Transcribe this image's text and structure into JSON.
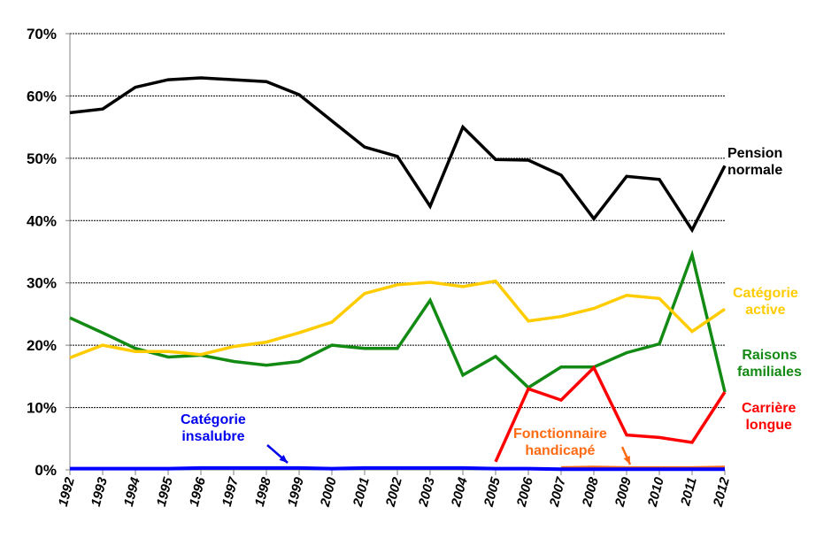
{
  "chart_data": {
    "type": "line",
    "title": "",
    "xlabel": "",
    "ylabel": "",
    "ylim": [
      0,
      70
    ],
    "yticks": [
      "0%",
      "10%",
      "20%",
      "30%",
      "40%",
      "50%",
      "60%",
      "70%"
    ],
    "grid": "horizontal dashed",
    "x": [
      "1992",
      "1993",
      "1994",
      "1995",
      "1996",
      "1997",
      "1998",
      "1999",
      "2000",
      "2001",
      "2002",
      "2003",
      "2004",
      "2005",
      "2006",
      "2007",
      "2008",
      "2009",
      "2010",
      "2011",
      "2012"
    ],
    "series": [
      {
        "name": "Pension normale",
        "color": "#000000",
        "values": [
          57.3,
          57.9,
          61.4,
          62.6,
          62.9,
          62.6,
          62.3,
          60.2,
          56.0,
          51.8,
          50.3,
          42.3,
          55.0,
          49.8,
          49.7,
          47.3,
          40.3,
          47.1,
          46.6,
          38.5,
          48.8
        ]
      },
      {
        "name": "Catégorie active",
        "color": "#FFCC00",
        "values": [
          18.0,
          20.0,
          19.0,
          19.0,
          18.5,
          19.8,
          20.5,
          22.0,
          23.7,
          28.3,
          29.7,
          30.1,
          29.4,
          30.3,
          23.9,
          24.6,
          25.9,
          28.0,
          27.5,
          22.2,
          25.8
        ]
      },
      {
        "name": "Raisons familiales",
        "color": "#138A13",
        "values": [
          24.4,
          22.0,
          19.5,
          18.1,
          18.4,
          17.4,
          16.8,
          17.4,
          20.0,
          19.5,
          19.5,
          27.2,
          15.2,
          18.2,
          13.2,
          16.5,
          16.5,
          18.8,
          20.2,
          34.5,
          12.5
        ]
      },
      {
        "name": "Carrière longue",
        "color": "#FF0000",
        "values": [
          null,
          null,
          null,
          null,
          null,
          null,
          null,
          null,
          null,
          null,
          null,
          null,
          null,
          1.3,
          13.0,
          11.2,
          16.4,
          5.6,
          5.2,
          4.4,
          12.5
        ]
      },
      {
        "name": "Catégorie insalubre",
        "color": "#0000FF",
        "values": [
          0.2,
          0.2,
          0.2,
          0.2,
          0.3,
          0.3,
          0.3,
          0.3,
          0.2,
          0.3,
          0.3,
          0.3,
          0.3,
          0.2,
          0.2,
          0.1,
          0.1,
          0.1,
          0.1,
          0.1,
          0.1
        ]
      },
      {
        "name": "Fonctionnaire handicapé",
        "color": "#FF6A13",
        "values": [
          null,
          null,
          null,
          null,
          null,
          null,
          null,
          null,
          null,
          null,
          null,
          null,
          null,
          null,
          null,
          0.3,
          0.4,
          0.3,
          0.3,
          0.3,
          0.4
        ]
      }
    ],
    "legend": "inline labels at line ends"
  },
  "labels": {
    "pension": [
      "Pension",
      "normale"
    ],
    "active": [
      "Catégorie",
      "active"
    ],
    "familiales": [
      "Raisons",
      "familiales"
    ],
    "carriere": [
      "Carrière",
      "longue"
    ],
    "insalubre": [
      "Catégorie",
      "insalubre"
    ],
    "handicape": [
      "Fonctionnaire",
      "handicapé"
    ]
  }
}
